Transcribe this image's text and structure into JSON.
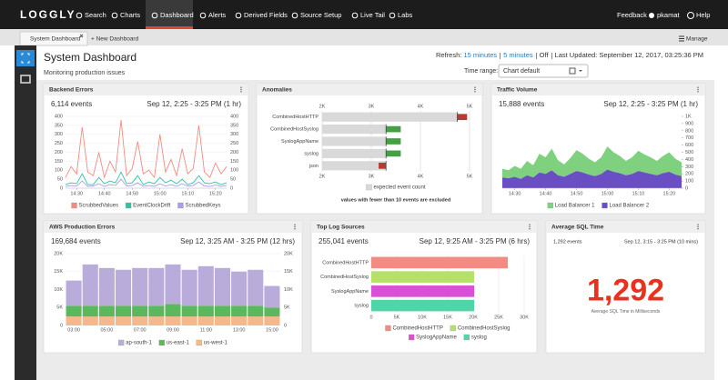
{
  "nav": {
    "logo": "LOGGLY",
    "items": [
      "Search",
      "Charts",
      "Dashboard",
      "Alerts",
      "Derived Fields",
      "Source Setup",
      "Live Tail",
      "Labs"
    ],
    "right": [
      "Feedback",
      "pkamat",
      "Help"
    ]
  },
  "tabs": {
    "active": "System Dashboard",
    "new": "+ New Dashboard",
    "manage": "Manage"
  },
  "header": {
    "title": "System Dashboard",
    "subtitle": "Monitoring production issues",
    "refresh_label": "Refresh:",
    "refresh_options": [
      "15 minutes",
      "5 minutes",
      "Off"
    ],
    "last_updated": "Last Updated: September 12, 2017, 03:25:36 PM",
    "time_range_label": "Time range:",
    "time_range_value": "Chart default"
  },
  "chart_data": [
    {
      "type": "line",
      "title": "Backend Errors",
      "event_count": "6,114 events",
      "time_span": "Sep 12, 2:25 - 3:25 PM (1 hr)",
      "x": [
        "14:26",
        "14:28",
        "14:30",
        "14:32",
        "14:34",
        "14:36",
        "14:38",
        "14:40",
        "14:42",
        "14:44",
        "14:46",
        "14:48",
        "14:50",
        "14:52",
        "14:54",
        "14:56",
        "14:58",
        "15:00",
        "15:02",
        "15:04",
        "15:06",
        "15:08",
        "15:10",
        "15:12",
        "15:14",
        "15:16",
        "15:18",
        "15:20",
        "15:22",
        "15:24"
      ],
      "xticks": [
        "14:30",
        "14:40",
        "14:50",
        "15:00",
        "15:10",
        "15:20"
      ],
      "ylim": [
        0,
        400
      ],
      "yticks": [
        0,
        50,
        100,
        150,
        200,
        250,
        300,
        350,
        400
      ],
      "y_axis": "both",
      "grid": true,
      "series": [
        {
          "name": "ScrubbedValues",
          "color": "#f28b82",
          "values": [
            60,
            120,
            80,
            340,
            90,
            70,
            200,
            60,
            150,
            90,
            380,
            70,
            110,
            260,
            80,
            100,
            60,
            300,
            90,
            160,
            70,
            220,
            80,
            110,
            350,
            90,
            60,
            140,
            80,
            120
          ]
        },
        {
          "name": "EventClockDrift",
          "color": "#2ec4a0",
          "values": [
            20,
            30,
            25,
            80,
            20,
            20,
            60,
            25,
            40,
            30,
            90,
            25,
            30,
            70,
            20,
            35,
            25,
            60,
            30,
            45,
            25,
            50,
            20,
            30,
            70,
            30,
            25,
            35,
            20,
            30
          ]
        },
        {
          "name": "ScrubbedKeys",
          "color": "#a99ee6",
          "values": [
            10,
            15,
            12,
            40,
            10,
            12,
            25,
            10,
            20,
            15,
            50,
            12,
            15,
            30,
            10,
            15,
            10,
            25,
            12,
            20,
            10,
            25,
            12,
            15,
            35,
            12,
            10,
            18,
            10,
            15
          ]
        }
      ]
    },
    {
      "type": "bullet",
      "title": "Anomalies",
      "categories": [
        "CombinedHostHTTP",
        "CombinedHostSyslog",
        "SyslogAppName",
        "syslog",
        "json"
      ],
      "xlim": [
        2000,
        5000
      ],
      "xticks": [
        {
          "value": 2000,
          "label": "2K"
        },
        {
          "value": 3000,
          "label": "3K"
        },
        {
          "value": 4000,
          "label": "4K"
        },
        {
          "value": 5000,
          "label": "5K"
        }
      ],
      "series": [
        {
          "name": "expected event count",
          "color": "#d9d9d9",
          "values": [
            4750,
            3300,
            3300,
            3300,
            3300
          ]
        }
      ],
      "actual": {
        "values": [
          4950,
          3600,
          3600,
          3600,
          3150
        ],
        "colors": [
          "#b83a30",
          "#43a043",
          "#43a043",
          "#43a043",
          "#b83a30"
        ]
      },
      "note": "values with fewer than 10 events are excluded"
    },
    {
      "type": "area",
      "title": "Traffic Volume",
      "event_count": "15,888 events",
      "time_span": "Sep 12, 2:25 - 3:25 PM (1 hr)",
      "x": [
        "14:26",
        "14:28",
        "14:30",
        "14:32",
        "14:34",
        "14:36",
        "14:38",
        "14:40",
        "14:42",
        "14:44",
        "14:46",
        "14:48",
        "14:50",
        "14:52",
        "14:54",
        "14:56",
        "14:58",
        "15:00",
        "15:02",
        "15:04",
        "15:06",
        "15:08",
        "15:10",
        "15:12",
        "15:14",
        "15:16",
        "15:18",
        "15:20",
        "15:22",
        "15:24"
      ],
      "xticks": [
        "14:30",
        "14:40",
        "14:50",
        "15:00",
        "15:10",
        "15:20"
      ],
      "ylim": [
        0,
        1000
      ],
      "yticks": [
        0,
        100,
        200,
        300,
        400,
        500,
        600,
        700,
        800,
        900,
        {
          "value": 1000,
          "label": "1K"
        }
      ],
      "y_axis": "right",
      "grid": false,
      "series": [
        {
          "name": "Load Balancer 1",
          "color": "#7fd17f",
          "values": [
            120,
            110,
            150,
            140,
            200,
            170,
            260,
            230,
            300,
            210,
            170,
            220,
            290,
            260,
            220,
            190,
            230,
            320,
            270,
            240,
            200,
            230,
            280,
            250,
            230,
            200,
            240,
            270,
            220,
            190
          ]
        },
        {
          "name": "Load Balancer 2",
          "color": "#6a4fc4",
          "values": [
            150,
            140,
            160,
            130,
            180,
            150,
            220,
            200,
            250,
            180,
            160,
            200,
            240,
            220,
            190,
            170,
            200,
            260,
            230,
            210,
            180,
            200,
            240,
            220,
            200,
            180,
            210,
            230,
            190,
            170
          ]
        }
      ]
    },
    {
      "type": "bar",
      "title": "AWS Production Errors",
      "event_count": "169,684 events",
      "time_span": "Sep 12, 3:25 AM - 3:25 PM (12 hrs)",
      "orientation": "vertical",
      "stacked": true,
      "categories": [
        "03:00",
        null,
        "05:00",
        null,
        "07:00",
        null,
        "09:00",
        null,
        "11:00",
        null,
        "13:00",
        null,
        "15:00"
      ],
      "ylim": [
        0,
        20000
      ],
      "yticks": [
        0,
        {
          "value": 5000,
          "label": "5K"
        },
        {
          "value": 10000,
          "label": "10K"
        },
        {
          "value": 15000,
          "label": "15K"
        },
        {
          "value": 20000,
          "label": "20K"
        }
      ],
      "y_axis": "both",
      "grid": true,
      "series": [
        {
          "name": "ap-south-1",
          "color": "#b9acdb",
          "values": [
            7000,
            11500,
            10500,
            10000,
            10500,
            10500,
            11000,
            10000,
            11000,
            10500,
            9500,
            10000,
            6000
          ]
        },
        {
          "name": "us-east-1",
          "color": "#5cb85c",
          "values": [
            3000,
            3000,
            3000,
            3000,
            3000,
            3000,
            3500,
            3000,
            3000,
            3000,
            3000,
            3000,
            2500
          ]
        },
        {
          "name": "us-west-1",
          "color": "#f5b88a",
          "values": [
            2500,
            2500,
            2500,
            2500,
            2500,
            2500,
            2500,
            2500,
            2500,
            2500,
            2500,
            2500,
            2500
          ]
        }
      ]
    },
    {
      "type": "bar",
      "title": "Top Log Sources",
      "event_count": "255,041 events",
      "time_span": "Sep 12, 9:25 AM - 3:25 PM (6 hrs)",
      "orientation": "horizontal",
      "categories": [
        "CombinedHostHTTP",
        "CombinedHostSyslog",
        "SyslogAppName",
        "syslog"
      ],
      "values": [
        26800,
        20200,
        20200,
        20200
      ],
      "colors": [
        "#f28b82",
        "#b5e06a",
        "#d94fd6",
        "#4fd6a8"
      ],
      "xlim": [
        0,
        30000
      ],
      "xticks": [
        0,
        {
          "value": 5000,
          "label": "5K"
        },
        {
          "value": 10000,
          "label": "10K"
        },
        {
          "value": 15000,
          "label": "15K"
        },
        {
          "value": 20000,
          "label": "20K"
        },
        {
          "value": 25000,
          "label": "25K"
        },
        {
          "value": 30000,
          "label": "30K"
        }
      ],
      "grid": true
    },
    {
      "type": "stat",
      "title": "Average SQL Time",
      "event_count": "1,292 events",
      "time_span": "Sep 12, 3:15 - 3:25 PM (10 mins)",
      "value": 1292,
      "value_label": "1,292",
      "color": "#e8321e",
      "caption": "Average SQL Time in Milliseconds"
    }
  ]
}
